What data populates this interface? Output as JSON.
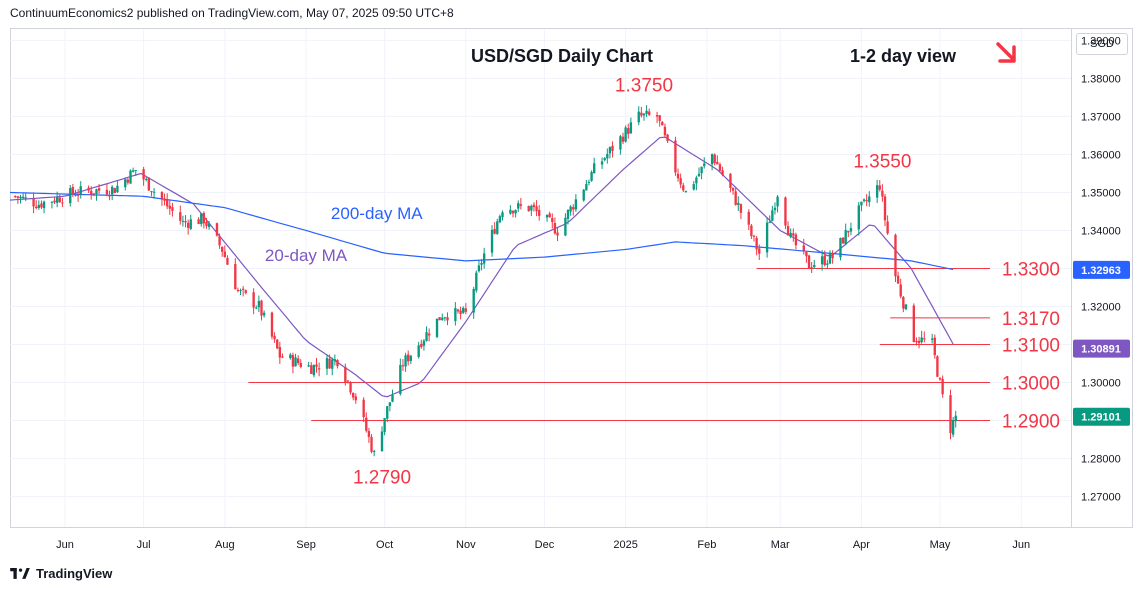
{
  "header": {
    "published_line": "ContinuumEconomics2 published on TradingView.com, May 07, 2025 09:50 UTC+8"
  },
  "currency_label": "SGD",
  "footer": {
    "brand": "TradingView"
  },
  "colors": {
    "up_candle": "#089981",
    "down_candle": "#f23645",
    "ma20": "#7e57c2",
    "ma200": "#2962ff",
    "support_line": "#f23645",
    "annotation_text": "#f23645",
    "arrow": "#f23645",
    "last_price_bg": "#089981",
    "ma20_badge_bg": "#7e57c2",
    "ma200_badge_bg": "#2962ff"
  },
  "chart_data": {
    "type": "candlestick",
    "title": "USD/SGD Daily Chart",
    "subtitle": "1-2 day view",
    "direction_icon": "arrow-down-right-icon",
    "y_axis": {
      "range": [
        1.262,
        1.393
      ],
      "ticks": [
        "1.39000",
        "1.38000",
        "1.37000",
        "1.36000",
        "1.35000",
        "1.34000",
        "1.33000",
        "1.32000",
        "1.31000",
        "1.30000",
        "1.29000",
        "1.28000",
        "1.27000"
      ]
    },
    "x_axis": {
      "labels": [
        "Jun",
        "Jul",
        "Aug",
        "Sep",
        "Oct",
        "Nov",
        "Dec",
        "2025",
        "Feb",
        "Mar",
        "Apr",
        "May",
        "Jun"
      ],
      "label_dates": [
        "2024-06-01",
        "2024-07-01",
        "2024-08-01",
        "2024-09-01",
        "2024-10-01",
        "2024-11-01",
        "2024-12-01",
        "2025-01-01",
        "2025-02-01",
        "2025-03-01",
        "2025-04-01",
        "2025-05-01",
        "2025-06-01"
      ],
      "range": [
        "2024-05-11",
        "2025-06-20"
      ]
    },
    "anchors": [
      {
        "date": "2024-05-13",
        "close": 1.349
      },
      {
        "date": "2024-05-22",
        "close": 1.347
      },
      {
        "date": "2024-06-05",
        "close": 1.35
      },
      {
        "date": "2024-06-20",
        "close": 1.351
      },
      {
        "date": "2024-06-28",
        "close": 1.356
      },
      {
        "date": "2024-07-08",
        "close": 1.348
      },
      {
        "date": "2024-07-16",
        "close": 1.342
      },
      {
        "date": "2024-07-24",
        "close": 1.343
      },
      {
        "date": "2024-07-31",
        "close": 1.335
      },
      {
        "date": "2024-08-06",
        "close": 1.324
      },
      {
        "date": "2024-08-14",
        "close": 1.32
      },
      {
        "date": "2024-08-22",
        "close": 1.307
      },
      {
        "date": "2024-09-03",
        "close": 1.304
      },
      {
        "date": "2024-09-13",
        "close": 1.306
      },
      {
        "date": "2024-09-20",
        "close": 1.296
      },
      {
        "date": "2024-09-27",
        "close": 1.281
      },
      {
        "date": "2024-10-01",
        "close": 1.291
      },
      {
        "date": "2024-10-08",
        "close": 1.305
      },
      {
        "date": "2024-10-23",
        "close": 1.318
      },
      {
        "date": "2024-11-01",
        "close": 1.318
      },
      {
        "date": "2024-11-07",
        "close": 1.332
      },
      {
        "date": "2024-11-15",
        "close": 1.346
      },
      {
        "date": "2024-11-26",
        "close": 1.346
      },
      {
        "date": "2024-12-06",
        "close": 1.34
      },
      {
        "date": "2024-12-20",
        "close": 1.356
      },
      {
        "date": "2024-12-31",
        "close": 1.365
      },
      {
        "date": "2025-01-06",
        "close": 1.37
      },
      {
        "date": "2025-01-13",
        "close": 1.37
      },
      {
        "date": "2025-01-20",
        "close": 1.356
      },
      {
        "date": "2025-01-24",
        "close": 1.35
      },
      {
        "date": "2025-02-03",
        "close": 1.36
      },
      {
        "date": "2025-02-12",
        "close": 1.348
      },
      {
        "date": "2025-02-21",
        "close": 1.334
      },
      {
        "date": "2025-02-28",
        "close": 1.35
      },
      {
        "date": "2025-03-05",
        "close": 1.338
      },
      {
        "date": "2025-03-12",
        "close": 1.331
      },
      {
        "date": "2025-03-21",
        "close": 1.333
      },
      {
        "date": "2025-03-31",
        "close": 1.345
      },
      {
        "date": "2025-04-08",
        "close": 1.352
      },
      {
        "date": "2025-04-10",
        "close": 1.343
      },
      {
        "date": "2025-04-14",
        "close": 1.328
      },
      {
        "date": "2025-04-21",
        "close": 1.312
      },
      {
        "date": "2025-04-28",
        "close": 1.31
      },
      {
        "date": "2025-05-02",
        "close": 1.296
      },
      {
        "date": "2025-05-05",
        "close": 1.288
      },
      {
        "date": "2025-05-07",
        "close": 1.291
      }
    ],
    "series": [
      {
        "name": "20-day MA",
        "color": "#7e57c2",
        "values": [
          {
            "date": "2024-05-11",
            "value": 1.348
          },
          {
            "date": "2024-06-01",
            "value": 1.349
          },
          {
            "date": "2024-06-30",
            "value": 1.355
          },
          {
            "date": "2024-07-20",
            "value": 1.347
          },
          {
            "date": "2024-08-15",
            "value": 1.325
          },
          {
            "date": "2024-09-01",
            "value": 1.311
          },
          {
            "date": "2024-09-20",
            "value": 1.302
          },
          {
            "date": "2024-10-01",
            "value": 1.296
          },
          {
            "date": "2024-10-15",
            "value": 1.3
          },
          {
            "date": "2024-11-01",
            "value": 1.316
          },
          {
            "date": "2024-11-20",
            "value": 1.336
          },
          {
            "date": "2024-12-10",
            "value": 1.342
          },
          {
            "date": "2024-12-31",
            "value": 1.356
          },
          {
            "date": "2025-01-15",
            "value": 1.365
          },
          {
            "date": "2025-02-05",
            "value": 1.356
          },
          {
            "date": "2025-03-01",
            "value": 1.34
          },
          {
            "date": "2025-03-20",
            "value": 1.333
          },
          {
            "date": "2025-04-05",
            "value": 1.342
          },
          {
            "date": "2025-04-20",
            "value": 1.33
          },
          {
            "date": "2025-05-07",
            "value": 1.3089
          }
        ]
      },
      {
        "name": "200-day MA",
        "color": "#2962ff",
        "values": [
          {
            "date": "2024-05-11",
            "value": 1.35
          },
          {
            "date": "2024-07-01",
            "value": 1.349
          },
          {
            "date": "2024-08-01",
            "value": 1.346
          },
          {
            "date": "2024-09-01",
            "value": 1.34
          },
          {
            "date": "2024-10-01",
            "value": 1.334
          },
          {
            "date": "2024-11-01",
            "value": 1.332
          },
          {
            "date": "2024-12-01",
            "value": 1.333
          },
          {
            "date": "2025-01-01",
            "value": 1.335
          },
          {
            "date": "2025-01-20",
            "value": 1.337
          },
          {
            "date": "2025-02-15",
            "value": 1.336
          },
          {
            "date": "2025-03-20",
            "value": 1.334
          },
          {
            "date": "2025-04-20",
            "value": 1.332
          },
          {
            "date": "2025-05-07",
            "value": 1.3296
          }
        ]
      }
    ],
    "last_price": "1.29101",
    "ma20_badge": "1.30891",
    "ma200_badge": "1.32963",
    "annotations": [
      {
        "text": "1.3750",
        "date": "2025-01-08",
        "value": 1.375,
        "kind": "peak"
      },
      {
        "text": "1.3550",
        "date": "2025-04-09",
        "value": 1.355,
        "kind": "peak"
      },
      {
        "text": "1.2790",
        "date": "2024-09-30",
        "value": 1.279,
        "kind": "trough"
      },
      {
        "text": "200-day MA",
        "date": "2024-09-28",
        "value": 1.343,
        "kind": "ma-label"
      },
      {
        "text": "20-day MA",
        "date": "2024-09-01",
        "value": 1.332,
        "kind": "ma-label"
      }
    ],
    "levels": [
      {
        "text": "1.3300",
        "value": 1.33,
        "from": "2025-02-20"
      },
      {
        "text": "1.3170",
        "value": 1.317,
        "from": "2025-04-12"
      },
      {
        "text": "1.3100",
        "value": 1.31,
        "from": "2025-04-08"
      },
      {
        "text": "1.3000",
        "value": 1.3,
        "from": "2024-08-10"
      },
      {
        "text": "1.2900",
        "value": 1.29,
        "from": "2024-09-03"
      }
    ]
  }
}
